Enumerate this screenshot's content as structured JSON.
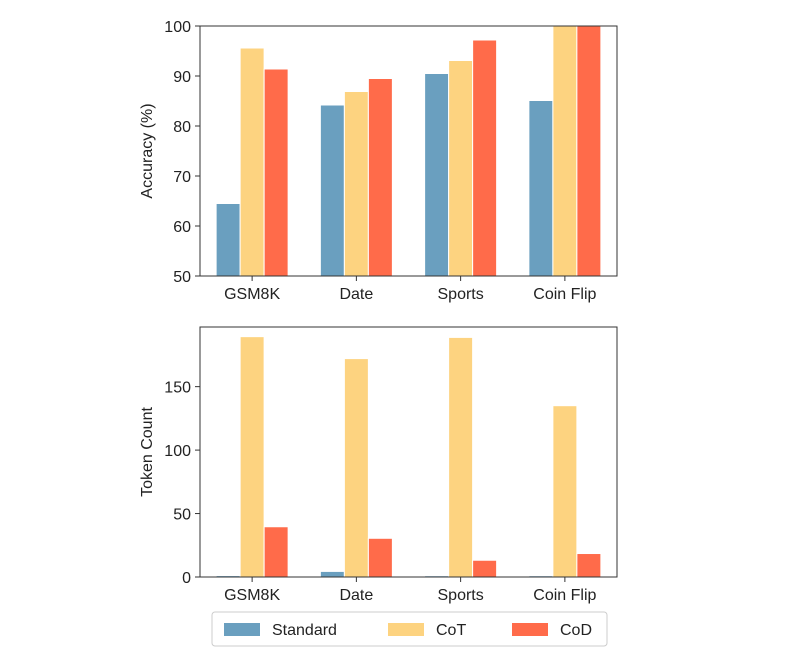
{
  "chart_data": [
    {
      "type": "bar",
      "title": "",
      "xlabel": "",
      "ylabel": "Accuracy (%)",
      "ylim": [
        50,
        100
      ],
      "yticks": [
        50,
        60,
        70,
        80,
        90,
        100
      ],
      "categories": [
        "GSM8K",
        "Date",
        "Sports",
        "Coin Flip"
      ],
      "series": [
        {
          "name": "Standard",
          "color": "#6a9fbf",
          "values": [
            64.5,
            84.2,
            90.5,
            85.1
          ]
        },
        {
          "name": "CoT",
          "color": "#fdd380",
          "values": [
            95.6,
            86.9,
            93.1,
            100
          ]
        },
        {
          "name": "CoD",
          "color": "#ff6b4a",
          "values": [
            91.4,
            89.5,
            97.2,
            100
          ]
        }
      ]
    },
    {
      "type": "bar",
      "title": "",
      "xlabel": "",
      "ylabel": "Token Count",
      "ylim": [
        0,
        197
      ],
      "yticks": [
        0,
        50,
        100,
        150
      ],
      "categories": [
        "GSM8K",
        "Date",
        "Sports",
        "Coin Flip"
      ],
      "series": [
        {
          "name": "Standard",
          "color": "#6a9fbf",
          "values": [
            1.1,
            4.4,
            1.0,
            1.0
          ]
        },
        {
          "name": "CoT",
          "color": "#fdd380",
          "values": [
            189.4,
            172.1,
            188.8,
            135.0
          ]
        },
        {
          "name": "CoD",
          "color": "#ff6b4a",
          "values": [
            39.6,
            30.5,
            13.2,
            18.5
          ]
        }
      ]
    }
  ],
  "legend": {
    "items": [
      {
        "label": "Standard",
        "color": "#6a9fbf"
      },
      {
        "label": "CoT",
        "color": "#fdd380"
      },
      {
        "label": "CoD",
        "color": "#ff6b4a"
      }
    ]
  }
}
